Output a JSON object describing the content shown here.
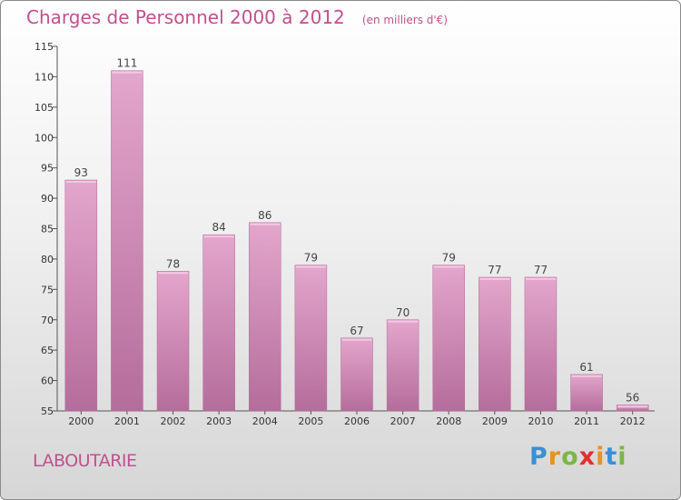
{
  "header": {
    "title": "Charges de Personnel 2000 à 2012",
    "subtitle": "(en milliers d'€)"
  },
  "footer": {
    "commune": "LABOUTARIE",
    "brand": {
      "letters": [
        {
          "ch": "P",
          "color": "#3a8fd6"
        },
        {
          "ch": "r",
          "color": "#e8921f"
        },
        {
          "ch": "o",
          "color": "#7ab648"
        },
        {
          "ch": "x",
          "color": "#e2312f"
        },
        {
          "ch": "i",
          "color": "#e8921f"
        },
        {
          "ch": "t",
          "color": "#3a8fd6"
        },
        {
          "ch": "i",
          "color": "#7ab648"
        }
      ]
    }
  },
  "chart_data": {
    "type": "bar",
    "categories": [
      "2000",
      "2001",
      "2002",
      "2003",
      "2004",
      "2005",
      "2006",
      "2007",
      "2008",
      "2009",
      "2010",
      "2011",
      "2012"
    ],
    "values": [
      93,
      111,
      78,
      84,
      86,
      79,
      67,
      70,
      79,
      77,
      77,
      61,
      56
    ],
    "title": "Charges de Personnel 2000 à 2012",
    "subtitle": "(en milliers d'€)",
    "xlabel": "",
    "ylabel": "",
    "ylim": [
      55,
      115
    ],
    "yticks": [
      55,
      60,
      65,
      70,
      75,
      80,
      85,
      90,
      95,
      100,
      105,
      110,
      115
    ],
    "grid": false,
    "bar_color": "#d98fbc"
  }
}
